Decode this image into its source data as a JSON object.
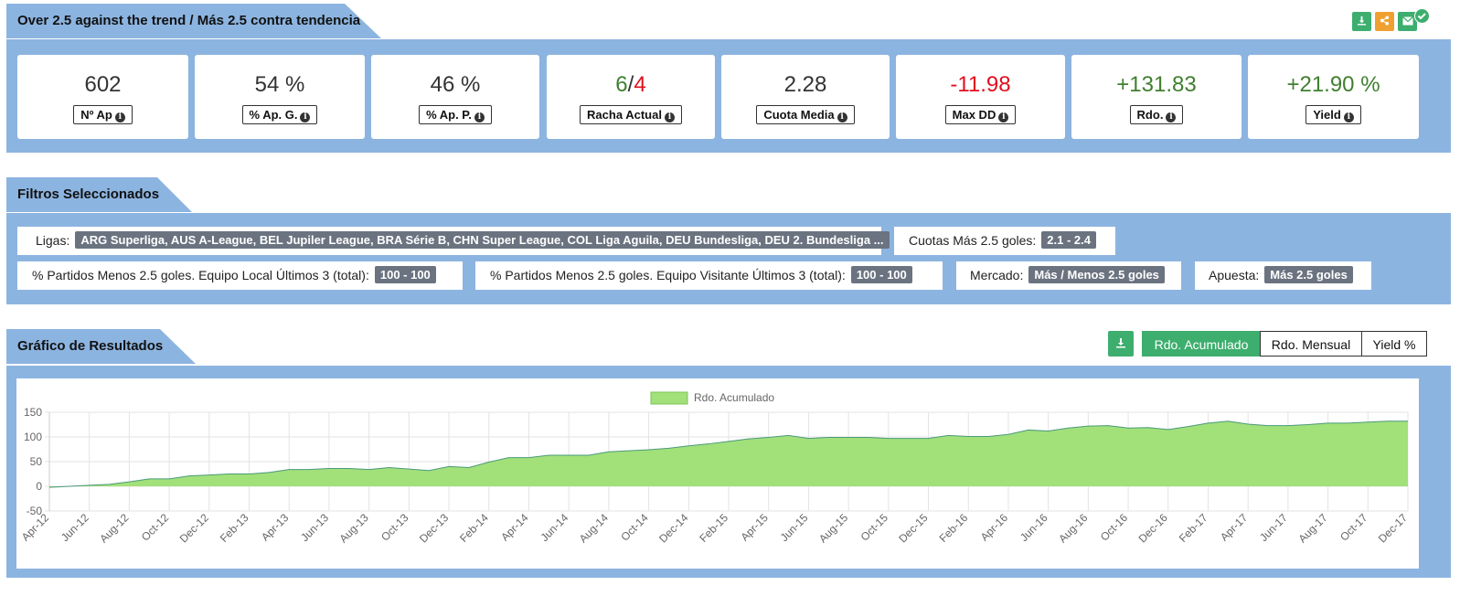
{
  "header": {
    "title": "Over 2.5 against the trend / Más 2.5 contra tendencia"
  },
  "stats": [
    {
      "value": "602",
      "label": "Nº Ap",
      "color": "#333333"
    },
    {
      "value": "54 %",
      "label": "% Ap. G.",
      "color": "#333333"
    },
    {
      "value": "46 %",
      "label": "% Ap. P.",
      "color": "#333333"
    },
    {
      "value_win": "6",
      "value_sep": "/",
      "value_loss": "4",
      "label": "Racha Actual"
    },
    {
      "value": "2.28",
      "label": "Cuota Media",
      "color": "#333333"
    },
    {
      "value": "-11.98",
      "label": "Max DD",
      "color": "#e0101e"
    },
    {
      "value": "+131.83",
      "label": "Rdo.",
      "color": "#3f7f2f"
    },
    {
      "value": "+21.90 %",
      "label": "Yield",
      "color": "#3f7f2f"
    }
  ],
  "filters": {
    "title": "Filtros Seleccionados",
    "items": [
      {
        "label": "Ligas:",
        "value": "ARG Superliga, AUS A-League, BEL Jupiler League, BRA Série B, CHN Super League, COL Liga Aguila, DEU Bundesliga, DEU 2. Bundesliga ..."
      },
      {
        "label": "Cuotas Más 2.5 goles:",
        "value": "2.1 - 2.4"
      },
      {
        "label": "% Partidos Menos 2.5 goles. Equipo Local Últimos 3 (total):",
        "value": "100 - 100"
      },
      {
        "label": "% Partidos Menos 2.5 goles. Equipo Visitante Últimos 3 (total):",
        "value": "100 - 100"
      },
      {
        "label": "Mercado:",
        "value": "Más / Menos 2.5 goles"
      },
      {
        "label": "Apuesta:",
        "value": "Más 2.5 goles"
      }
    ]
  },
  "results": {
    "title": "Gráfico de Resultados",
    "toggle": [
      "Rdo. Acumulado",
      "Rdo. Mensual",
      "Yield %"
    ],
    "active_toggle": "Rdo. Acumulado"
  },
  "icons": {
    "download": "download-icon",
    "share": "share-icon",
    "email": "email-icon",
    "check": "check-badge-icon"
  },
  "colors": {
    "band": "#8cb4e0",
    "accent_green": "#3dae6e",
    "accent_orange": "#f0a030",
    "area_fill": "#a2e07a",
    "area_line": "#4a9a7a",
    "positive": "#3f7f2f",
    "negative": "#e0101e"
  },
  "chart_data": {
    "type": "area",
    "legend": "Rdo. Acumulado",
    "legend_position": "top-center",
    "grid": true,
    "ylim": [
      -50,
      150
    ],
    "yticks": [
      150,
      100,
      50,
      0,
      -50
    ],
    "x_ticks": [
      "Apr-12",
      "Jun-12",
      "Aug-12",
      "Oct-12",
      "Dec-12",
      "Feb-13",
      "Apr-13",
      "Jun-13",
      "Aug-13",
      "Oct-13",
      "Dec-13",
      "Feb-14",
      "Apr-14",
      "Jun-14",
      "Aug-14",
      "Oct-14",
      "Dec-14",
      "Feb-15",
      "Apr-15",
      "Jun-15",
      "Aug-15",
      "Oct-15",
      "Dec-15",
      "Feb-16",
      "Apr-16",
      "Jun-16",
      "Aug-16",
      "Oct-16",
      "Dec-16",
      "Feb-17",
      "Apr-17",
      "Jun-17",
      "Aug-17",
      "Oct-17",
      "Dec-17"
    ],
    "series": [
      {
        "name": "Rdo. Acumulado",
        "x": [
          "Apr-12",
          "May-12",
          "Jun-12",
          "Jul-12",
          "Aug-12",
          "Sep-12",
          "Oct-12",
          "Nov-12",
          "Dec-12",
          "Jan-13",
          "Feb-13",
          "Mar-13",
          "Apr-13",
          "May-13",
          "Jun-13",
          "Jul-13",
          "Aug-13",
          "Sep-13",
          "Oct-13",
          "Nov-13",
          "Dec-13",
          "Jan-14",
          "Feb-14",
          "Mar-14",
          "Apr-14",
          "May-14",
          "Jun-14",
          "Jul-14",
          "Aug-14",
          "Sep-14",
          "Oct-14",
          "Nov-14",
          "Dec-14",
          "Jan-15",
          "Feb-15",
          "Mar-15",
          "Apr-15",
          "May-15",
          "Jun-15",
          "Jul-15",
          "Aug-15",
          "Sep-15",
          "Oct-15",
          "Nov-15",
          "Dec-15",
          "Jan-16",
          "Feb-16",
          "Mar-16",
          "Apr-16",
          "May-16",
          "Jun-16",
          "Jul-16",
          "Aug-16",
          "Sep-16",
          "Oct-16",
          "Nov-16",
          "Dec-16",
          "Jan-17",
          "Feb-17",
          "Mar-17",
          "Apr-17",
          "May-17",
          "Jun-17",
          "Jul-17",
          "Aug-17",
          "Sep-17",
          "Oct-17",
          "Nov-17",
          "Dec-17"
        ],
        "values": [
          -2,
          0,
          2,
          4,
          9,
          15,
          15,
          21,
          23,
          25,
          25,
          28,
          34,
          34,
          36,
          36,
          34,
          38,
          35,
          32,
          40,
          38,
          49,
          58,
          58,
          63,
          63,
          63,
          70,
          72,
          74,
          77,
          82,
          86,
          91,
          96,
          99,
          103,
          97,
          99,
          99,
          99,
          97,
          97,
          97,
          103,
          101,
          101,
          105,
          114,
          112,
          118,
          122,
          123,
          118,
          119,
          115,
          121,
          128,
          132,
          126,
          123,
          123,
          125,
          128,
          128,
          130,
          132,
          132
        ]
      }
    ]
  }
}
